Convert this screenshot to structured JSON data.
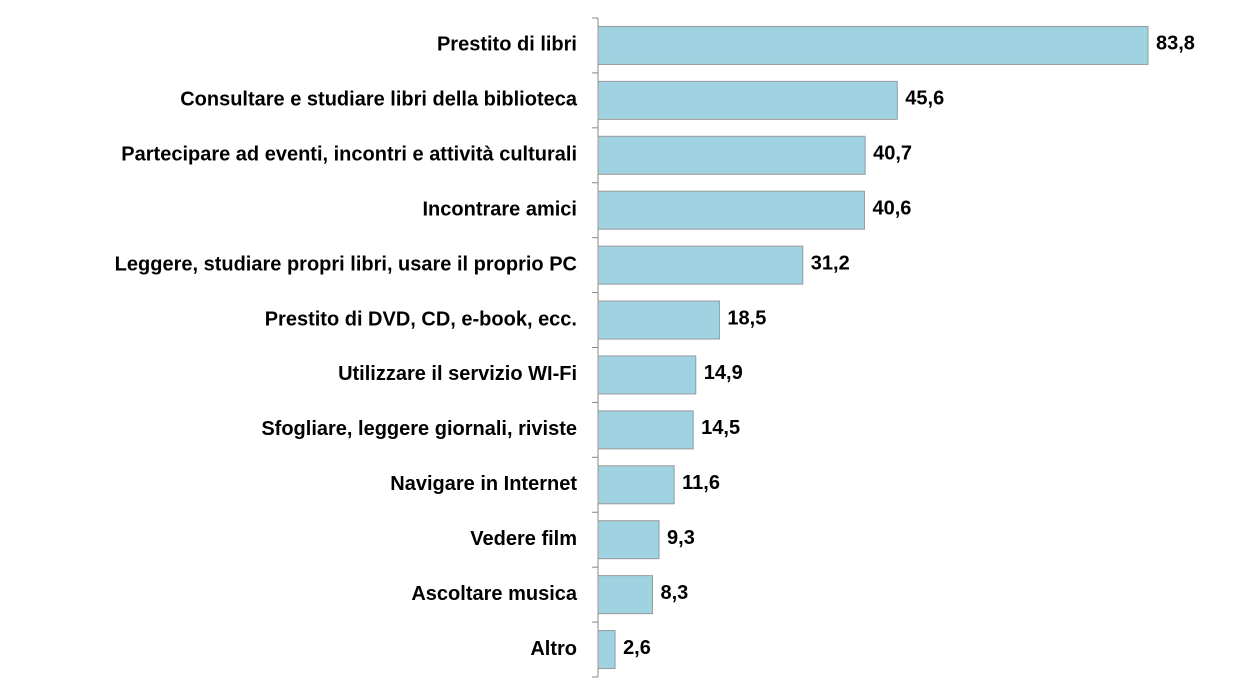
{
  "chart_data": {
    "type": "barh",
    "categories": [
      "Prestito di libri",
      "Consultare e studiare libri della biblioteca",
      "Partecipare ad eventi, incontri e attività culturali",
      "Incontrare amici",
      "Leggere, studiare propri libri, usare il proprio PC",
      "Prestito di DVD, CD, e-book, ecc.",
      "Utilizzare il servizio WI-Fi",
      "Sfogliare, leggere giornali, riviste",
      "Navigare in Internet",
      "Vedere film",
      "Ascoltare musica",
      "Altro"
    ],
    "values": [
      83.8,
      45.6,
      40.7,
      40.6,
      31.2,
      18.5,
      14.9,
      14.5,
      11.6,
      9.3,
      8.3,
      2.6
    ],
    "value_labels": [
      "83,8",
      "45,6",
      "40,7",
      "40,6",
      "31,2",
      "18,5",
      "14,9",
      "14,5",
      "11,6",
      "9,3",
      "8,3",
      "2,6"
    ],
    "color": "#9fd3e1"
  }
}
